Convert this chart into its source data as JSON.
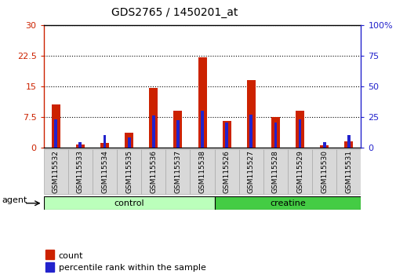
{
  "title": "GDS2765 / 1450201_at",
  "categories": [
    "GSM115532",
    "GSM115533",
    "GSM115534",
    "GSM115535",
    "GSM115536",
    "GSM115537",
    "GSM115538",
    "GSM115526",
    "GSM115527",
    "GSM115528",
    "GSM115529",
    "GSM115530",
    "GSM115531"
  ],
  "count_values": [
    10.5,
    0.7,
    1.0,
    3.5,
    14.5,
    9.0,
    22.0,
    6.5,
    16.5,
    7.5,
    9.0,
    0.5,
    1.5
  ],
  "percentile_values": [
    23,
    4,
    10,
    8,
    26,
    22,
    30,
    20,
    27,
    20,
    23,
    4,
    10
  ],
  "count_color": "#cc2200",
  "percentile_color": "#2222cc",
  "ylim_left": [
    0,
    30
  ],
  "ylim_right": [
    0,
    100
  ],
  "yticks_left": [
    0,
    7.5,
    15,
    22.5,
    30
  ],
  "yticks_right": [
    0,
    25,
    50,
    75,
    100
  ],
  "ytick_labels_left": [
    "0",
    "7.5",
    "15",
    "22.5",
    "30"
  ],
  "ytick_labels_right": [
    "0",
    "25",
    "50",
    "75",
    "100%"
  ],
  "groups": [
    {
      "label": "control",
      "start": 0,
      "end": 7,
      "color_light": "#bbffbb",
      "color_dark": "#44cc44"
    },
    {
      "label": "creatine",
      "start": 7,
      "end": 13,
      "color_light": "#44cc44",
      "color_dark": "#44cc44"
    }
  ],
  "agent_label": "agent",
  "legend_items": [
    {
      "label": "count",
      "color": "#cc2200"
    },
    {
      "label": "percentile rank within the sample",
      "color": "#2222cc"
    }
  ],
  "bar_width": 0.35,
  "blue_bar_width": 0.12,
  "grid_linestyle": "dotted",
  "grid_color": "black",
  "bg_color": "#f0f0f0",
  "plot_bg": "white",
  "tick_bg": "#d8d8d8",
  "font_size": 8,
  "title_font_size": 10
}
